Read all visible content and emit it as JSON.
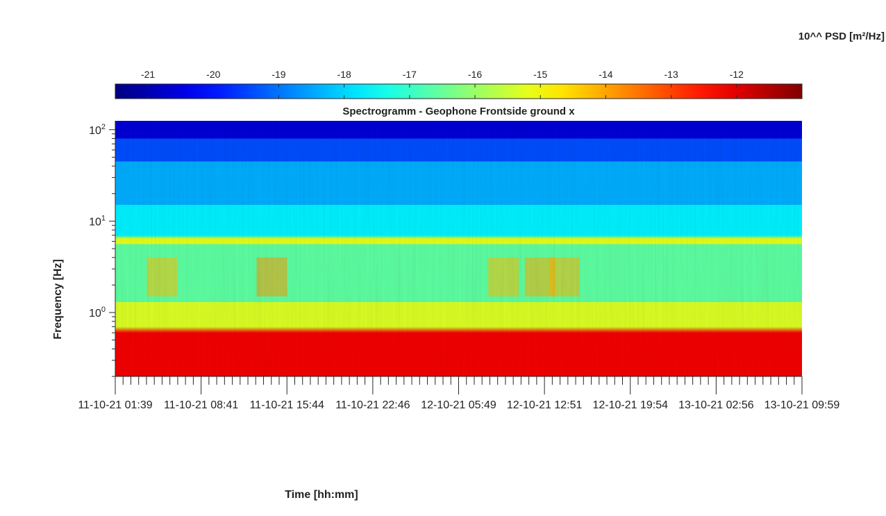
{
  "chart_data": {
    "type": "heatmap",
    "title": "Spectrogramm - Geophone Frontside ground x",
    "xlabel": "Time [hh:mm]",
    "ylabel": "Frequency [Hz]",
    "y_scale": "log",
    "ylim": [
      0.2,
      125
    ],
    "y_ticks": [
      {
        "value": 100,
        "base": "10",
        "exponent": "2"
      },
      {
        "value": 10,
        "base": "10",
        "exponent": "1"
      },
      {
        "value": 1,
        "base": "10",
        "exponent": "0"
      }
    ],
    "x_tick_labels": [
      "11-10-21 01:39",
      "11-10-21 08:41",
      "11-10-21 15:44",
      "11-10-21 22:46",
      "12-10-21 05:49",
      "12-10-21 12:51",
      "12-10-21 19:54",
      "13-10-21 02:56",
      "13-10-21 09:59"
    ],
    "colorbar": {
      "label": "10^^ PSD [m²/Hz]",
      "colormap": "jet",
      "range": [
        -21.5,
        -11
      ],
      "ticks": [
        "-21",
        "-20",
        "-19",
        "-18",
        "-17",
        "-16",
        "-15",
        "-14",
        "-13",
        "-12"
      ]
    },
    "bands": [
      {
        "freq_hz": [
          80,
          125
        ],
        "log10_psd": -20.6
      },
      {
        "freq_hz": [
          45,
          80
        ],
        "log10_psd": -19.4
      },
      {
        "freq_hz": [
          15,
          45
        ],
        "log10_psd": -18.4
      },
      {
        "freq_hz": [
          7,
          15
        ],
        "log10_psd": -17.7
      },
      {
        "freq_hz": [
          5.6,
          6.4
        ],
        "log10_psd": -15.2
      },
      {
        "freq_hz": [
          1.3,
          5.6
        ],
        "log10_psd": -16.6
      },
      {
        "freq_hz": [
          0.7,
          1.3
        ],
        "log10_psd": -15.3
      },
      {
        "freq_hz": [
          0.2,
          0.6
        ],
        "log10_psd": -12.2
      }
    ],
    "events": [
      {
        "time": "11-10-21 05:30",
        "freq_hz": [
          1.5,
          4
        ],
        "log10_psd": -14.3
      },
      {
        "time": "11-10-21 14:30",
        "freq_hz": [
          1.5,
          4
        ],
        "log10_psd": -13.9
      },
      {
        "time": "12-10-21 09:30",
        "freq_hz": [
          1.5,
          4
        ],
        "log10_psd": -14.3
      },
      {
        "time": "12-10-21 12:30",
        "freq_hz": [
          1.5,
          4
        ],
        "log10_psd": -14.1
      },
      {
        "time": "12-10-21 14:30",
        "freq_hz": [
          1.5,
          4
        ],
        "log10_psd": -14.2
      }
    ]
  }
}
